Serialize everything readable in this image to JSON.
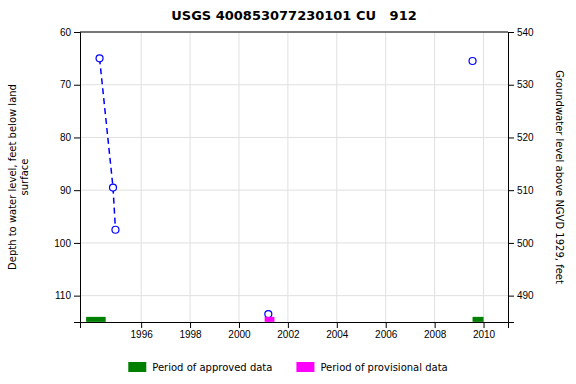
{
  "chart_data": {
    "type": "line",
    "title": "USGS 400853077230101 CU   912",
    "ylabel": "Depth to water level, feet below land\nsurface",
    "y2label": "Groundwater level above NGVD 1929, feet",
    "xlim": [
      1993.5,
      2011.0
    ],
    "xticks": [
      1996,
      1998,
      2000,
      2002,
      2004,
      2006,
      2008,
      2010
    ],
    "ylim": [
      115,
      60
    ],
    "yticks": [
      60,
      70,
      80,
      90,
      100,
      110
    ],
    "y2lim": [
      485,
      540
    ],
    "y2ticks": [
      490,
      500,
      510,
      520,
      530,
      540
    ],
    "grid": true,
    "legend": "bottom",
    "series": [
      {
        "type": "line",
        "color": "#0000ff",
        "marker": "circle",
        "line_style": "dashed",
        "x": [
          1994.3,
          1994.85,
          1994.95
        ],
        "values": [
          65.0,
          89.5,
          97.5
        ]
      },
      {
        "type": "scatter",
        "color": "#0000ff",
        "marker": "circle",
        "x": [
          2001.2,
          2009.55
        ],
        "values": [
          113.5,
          65.5
        ]
      },
      {
        "type": "period",
        "name": "Period of approved data",
        "color": "#008000",
        "x_start": [
          1993.75,
          2009.55
        ],
        "x_end": [
          1994.55,
          2010.0
        ],
        "y": 114.5
      },
      {
        "type": "period",
        "name": "Period of provisional data",
        "color": "#ff00ff",
        "x_start": [
          2001.05
        ],
        "x_end": [
          2001.45
        ],
        "y": 114.5
      }
    ]
  }
}
